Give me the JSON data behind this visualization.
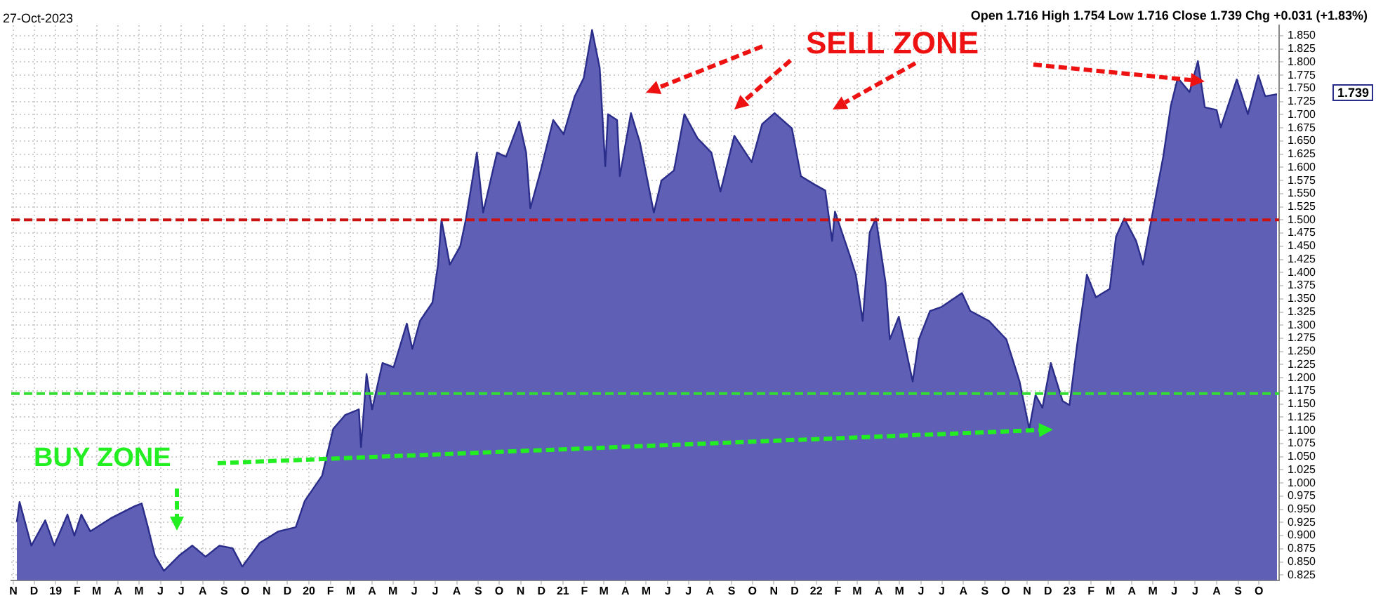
{
  "chart_data": {
    "type": "area",
    "annotations": [
      "27-Oct-2023",
      "Open 1.716 High 1.754 Low 1.716 Close 1.739 Chg +0.031 (+1.83%)",
      "SELL ZONE",
      "BUY ZONE",
      "1.739"
    ],
    "x": [
      "2018-11-06",
      "2018-11-10",
      "2018-11-27",
      "2018-12-17",
      "2018-12-30",
      "2019-01-18",
      "2019-01-28",
      "2019-02-07",
      "2019-02-20",
      "2019-03-23",
      "2019-04-25",
      "2019-05-05",
      "2019-05-14",
      "2019-05-24",
      "2019-06-06",
      "2019-06-28",
      "2019-07-17",
      "2019-08-05",
      "2019-08-25",
      "2019-09-13",
      "2019-09-27",
      "2019-10-22",
      "2019-11-18",
      "2019-12-13",
      "2019-12-26",
      "2020-01-20",
      "2020-02-05",
      "2020-02-22",
      "2020-03-13",
      "2020-03-16",
      "2020-03-24",
      "2020-04-01",
      "2020-04-16",
      "2020-05-02",
      "2020-05-21",
      "2020-05-29",
      "2020-06-09",
      "2020-06-27",
      "2020-07-05",
      "2020-07-10",
      "2020-07-22",
      "2020-08-06",
      "2020-08-14",
      "2020-08-30",
      "2020-09-08",
      "2020-09-28",
      "2020-10-11",
      "2020-10-30",
      "2020-11-09",
      "2020-11-15",
      "2020-11-30",
      "2020-12-18",
      "2021-01-02",
      "2021-01-18",
      "2021-01-31",
      "2021-02-12",
      "2021-02-23",
      "2021-03-03",
      "2021-03-07",
      "2021-03-20",
      "2021-03-24",
      "2021-04-09",
      "2021-04-22",
      "2021-05-12",
      "2021-05-23",
      "2021-06-10",
      "2021-06-25",
      "2021-07-14",
      "2021-08-03",
      "2021-08-16",
      "2021-09-05",
      "2021-09-30",
      "2021-10-15",
      "2021-11-02",
      "2021-11-27",
      "2021-12-10",
      "2021-12-30",
      "2022-01-14",
      "2022-01-24",
      "2022-01-28",
      "2022-02-18",
      "2022-02-27",
      "2022-03-09",
      "2022-03-19",
      "2022-03-28",
      "2022-04-11",
      "2022-04-17",
      "2022-04-30",
      "2022-05-10",
      "2022-05-20",
      "2022-05-29",
      "2022-06-14",
      "2022-07-01",
      "2022-07-30",
      "2022-08-11",
      "2022-09-07",
      "2022-10-02",
      "2022-10-21",
      "2022-11-04",
      "2022-11-13",
      "2022-11-23",
      "2022-12-05",
      "2022-12-22",
      "2023-01-01",
      "2023-01-12",
      "2023-01-26",
      "2023-02-08",
      "2023-02-28",
      "2023-03-09",
      "2023-03-21",
      "2023-04-07",
      "2023-04-17",
      "2023-05-02",
      "2023-05-16",
      "2023-05-27",
      "2023-06-06",
      "2023-06-23",
      "2023-07-05",
      "2023-07-15",
      "2023-08-01",
      "2023-08-07",
      "2023-08-30",
      "2023-09-15",
      "2023-09-30",
      "2023-10-10",
      "2023-10-27"
    ],
    "series": [
      {
        "color": "#5e5fb5",
        "values": [
          0.926,
          0.964,
          0.881,
          0.929,
          0.881,
          0.94,
          0.9,
          0.94,
          0.908,
          0.934,
          0.956,
          0.961,
          0.916,
          0.862,
          0.833,
          0.862,
          0.881,
          0.86,
          0.881,
          0.876,
          0.841,
          0.886,
          0.908,
          0.916,
          0.966,
          1.014,
          1.103,
          1.129,
          1.14,
          1.068,
          1.207,
          1.14,
          1.228,
          1.22,
          1.303,
          1.255,
          1.308,
          1.343,
          1.415,
          1.5,
          1.415,
          1.45,
          1.5,
          1.628,
          1.514,
          1.628,
          1.62,
          1.687,
          1.628,
          1.522,
          1.594,
          1.69,
          1.663,
          1.735,
          1.77,
          1.861,
          1.789,
          1.602,
          1.701,
          1.69,
          1.583,
          1.703,
          1.647,
          1.514,
          1.575,
          1.594,
          1.701,
          1.655,
          1.628,
          1.554,
          1.66,
          1.61,
          1.682,
          1.703,
          1.674,
          1.583,
          1.567,
          1.556,
          1.46,
          1.516,
          1.434,
          1.396,
          1.308,
          1.476,
          1.503,
          1.38,
          1.273,
          1.316,
          1.255,
          1.193,
          1.273,
          1.327,
          1.335,
          1.361,
          1.327,
          1.308,
          1.273,
          1.193,
          1.103,
          1.167,
          1.143,
          1.228,
          1.156,
          1.148,
          1.263,
          1.396,
          1.353,
          1.369,
          1.468,
          1.503,
          1.46,
          1.415,
          1.522,
          1.62,
          1.717,
          1.77,
          1.743,
          1.802,
          1.714,
          1.709,
          1.676,
          1.767,
          1.701,
          1.775,
          1.735,
          1.739
        ]
      }
    ],
    "xlim": [
      "2018-10-29",
      "2023-10-30"
    ],
    "ylim": [
      0.815,
      1.87
    ],
    "xticks": [
      {
        "value": "2018-11-01",
        "label": "N"
      },
      {
        "value": "2018-12-01",
        "label": "D"
      },
      {
        "value": "2019-01-01",
        "label": "19"
      },
      {
        "value": "2019-02-01",
        "label": "F"
      },
      {
        "value": "2019-03-01",
        "label": "M"
      },
      {
        "value": "2019-04-01",
        "label": "A"
      },
      {
        "value": "2019-05-01",
        "label": "M"
      },
      {
        "value": "2019-06-01",
        "label": "J"
      },
      {
        "value": "2019-07-01",
        "label": "J"
      },
      {
        "value": "2019-08-01",
        "label": "A"
      },
      {
        "value": "2019-09-01",
        "label": "S"
      },
      {
        "value": "2019-10-01",
        "label": "O"
      },
      {
        "value": "2019-11-01",
        "label": "N"
      },
      {
        "value": "2019-12-01",
        "label": "D"
      },
      {
        "value": "2020-01-01",
        "label": "20"
      },
      {
        "value": "2020-02-01",
        "label": "F"
      },
      {
        "value": "2020-03-01",
        "label": "M"
      },
      {
        "value": "2020-04-01",
        "label": "A"
      },
      {
        "value": "2020-05-01",
        "label": "M"
      },
      {
        "value": "2020-06-01",
        "label": "J"
      },
      {
        "value": "2020-07-01",
        "label": "J"
      },
      {
        "value": "2020-08-01",
        "label": "A"
      },
      {
        "value": "2020-09-01",
        "label": "S"
      },
      {
        "value": "2020-10-01",
        "label": "O"
      },
      {
        "value": "2020-11-01",
        "label": "N"
      },
      {
        "value": "2020-12-01",
        "label": "D"
      },
      {
        "value": "2021-01-01",
        "label": "21"
      },
      {
        "value": "2021-02-01",
        "label": "F"
      },
      {
        "value": "2021-03-01",
        "label": "M"
      },
      {
        "value": "2021-04-01",
        "label": "A"
      },
      {
        "value": "2021-05-01",
        "label": "M"
      },
      {
        "value": "2021-06-01",
        "label": "J"
      },
      {
        "value": "2021-07-01",
        "label": "J"
      },
      {
        "value": "2021-08-01",
        "label": "A"
      },
      {
        "value": "2021-09-01",
        "label": "S"
      },
      {
        "value": "2021-10-01",
        "label": "O"
      },
      {
        "value": "2021-11-01",
        "label": "N"
      },
      {
        "value": "2021-12-01",
        "label": "D"
      },
      {
        "value": "2022-01-01",
        "label": "22"
      },
      {
        "value": "2022-02-01",
        "label": "F"
      },
      {
        "value": "2022-03-01",
        "label": "M"
      },
      {
        "value": "2022-04-01",
        "label": "A"
      },
      {
        "value": "2022-05-01",
        "label": "M"
      },
      {
        "value": "2022-06-01",
        "label": "J"
      },
      {
        "value": "2022-07-01",
        "label": "J"
      },
      {
        "value": "2022-08-01",
        "label": "A"
      },
      {
        "value": "2022-09-01",
        "label": "S"
      },
      {
        "value": "2022-10-01",
        "label": "O"
      },
      {
        "value": "2022-11-01",
        "label": "N"
      },
      {
        "value": "2022-12-01",
        "label": "D"
      },
      {
        "value": "2023-01-01",
        "label": "23"
      },
      {
        "value": "2023-02-01",
        "label": "F"
      },
      {
        "value": "2023-03-01",
        "label": "M"
      },
      {
        "value": "2023-04-01",
        "label": "A"
      },
      {
        "value": "2023-05-01",
        "label": "M"
      },
      {
        "value": "2023-06-01",
        "label": "J"
      },
      {
        "value": "2023-07-01",
        "label": "J"
      },
      {
        "value": "2023-08-01",
        "label": "A"
      },
      {
        "value": "2023-09-01",
        "label": "S"
      },
      {
        "value": "2023-10-01",
        "label": "O"
      }
    ],
    "yticks": [
      {
        "value": 0.825,
        "label": "0.825"
      },
      {
        "value": 0.85,
        "label": "0.850"
      },
      {
        "value": 0.875,
        "label": "0.875"
      },
      {
        "value": 0.9,
        "label": "0.900"
      },
      {
        "value": 0.925,
        "label": "0.925"
      },
      {
        "value": 0.95,
        "label": "0.950"
      },
      {
        "value": 0.975,
        "label": "0.975"
      },
      {
        "value": 1.0,
        "label": "1.000"
      },
      {
        "value": 1.025,
        "label": "1.025"
      },
      {
        "value": 1.05,
        "label": "1.050"
      },
      {
        "value": 1.075,
        "label": "1.075"
      },
      {
        "value": 1.1,
        "label": "1.100"
      },
      {
        "value": 1.125,
        "label": "1.125"
      },
      {
        "value": 1.15,
        "label": "1.150"
      },
      {
        "value": 1.175,
        "label": "1.175"
      },
      {
        "value": 1.2,
        "label": "1.200"
      },
      {
        "value": 1.225,
        "label": "1.225"
      },
      {
        "value": 1.25,
        "label": "1.250"
      },
      {
        "value": 1.275,
        "label": "1.275"
      },
      {
        "value": 1.3,
        "label": "1.300"
      },
      {
        "value": 1.325,
        "label": "1.325"
      },
      {
        "value": 1.35,
        "label": "1.350"
      },
      {
        "value": 1.375,
        "label": "1.375"
      },
      {
        "value": 1.4,
        "label": "1.400"
      },
      {
        "value": 1.425,
        "label": "1.425"
      },
      {
        "value": 1.45,
        "label": "1.450"
      },
      {
        "value": 1.475,
        "label": "1.475"
      },
      {
        "value": 1.5,
        "label": "1.500"
      },
      {
        "value": 1.525,
        "label": "1.525"
      },
      {
        "value": 1.55,
        "label": "1.550"
      },
      {
        "value": 1.575,
        "label": "1.575"
      },
      {
        "value": 1.6,
        "label": "1.600"
      },
      {
        "value": 1.625,
        "label": "1.625"
      },
      {
        "value": 1.65,
        "label": "1.650"
      },
      {
        "value": 1.675,
        "label": "1.675"
      },
      {
        "value": 1.7,
        "label": "1.700"
      },
      {
        "value": 1.725,
        "label": "1.725"
      },
      {
        "value": 1.75,
        "label": "1.750"
      },
      {
        "value": 1.775,
        "label": "1.775"
      },
      {
        "value": 1.8,
        "label": "1.800"
      },
      {
        "value": 1.825,
        "label": "1.825"
      },
      {
        "value": 1.85,
        "label": "1.850"
      }
    ],
    "ref_lines": [
      {
        "axis": "y",
        "value": 1.5,
        "color": "#cc1111",
        "line_style": "dashed"
      },
      {
        "axis": "y",
        "value": 1.17,
        "color": "#33dd33",
        "line_style": "dashed"
      }
    ],
    "grid": true,
    "legend": false,
    "marker": "none",
    "line_style": "solid"
  }
}
